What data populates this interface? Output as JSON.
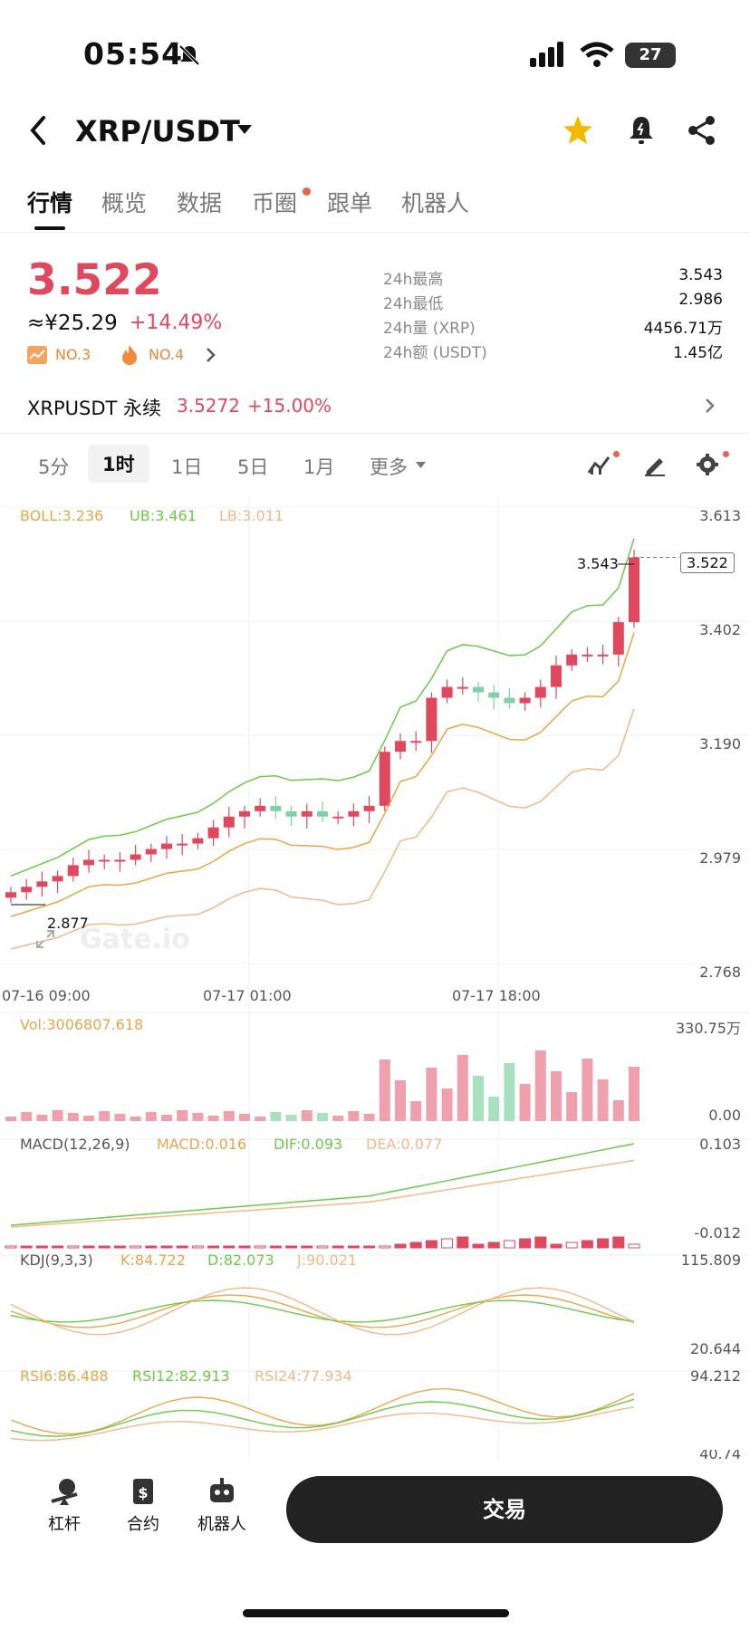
{
  "status_bar": {
    "time": "05:54",
    "battery": "27"
  },
  "header": {
    "pair": "XRP/USDT",
    "icons": [
      "back-icon",
      "dropdown-icon",
      "star-icon",
      "bell-icon",
      "share-icon"
    ]
  },
  "tabs": [
    {
      "label": "行情",
      "active": true
    },
    {
      "label": "概览"
    },
    {
      "label": "数据"
    },
    {
      "label": "币圈",
      "dot": true
    },
    {
      "label": "跟单"
    },
    {
      "label": "机器人"
    }
  ],
  "ticker": {
    "price": "3.522",
    "cny": "≈¥25.29",
    "change": "+14.49%",
    "rank1": "NO.3",
    "rank2": "NO.4",
    "stats": [
      {
        "label": "24h最高",
        "value": "3.543"
      },
      {
        "label": "24h最低",
        "value": "2.986"
      },
      {
        "label": "24h量 (XRP)",
        "value": "4456.71万"
      },
      {
        "label": "24h额 (USDT)",
        "value": "1.45亿"
      }
    ]
  },
  "perpetual": {
    "name": "XRPUSDT 永续",
    "price": "3.5272",
    "change": "+15.00%"
  },
  "periods": [
    {
      "label": "5分"
    },
    {
      "label": "1时",
      "active": true
    },
    {
      "label": "1日"
    },
    {
      "label": "5日"
    },
    {
      "label": "1月"
    },
    {
      "label": "更多"
    }
  ],
  "indicators": {
    "boll": "BOLL:3.236",
    "ub": "UB:3.461",
    "lb": "LB:3.011",
    "vol": "Vol:3006807.618",
    "vol_max": "330.75万",
    "vol_min": "0.00",
    "macd_title": "MACD(12,26,9)",
    "macd": "MACD:0.016",
    "dif": "DIF:0.093",
    "dea": "DEA:0.077",
    "macd_max": "0.103",
    "macd_min": "-0.012",
    "kdj_title": "KDJ(9,3,3)",
    "k": "K:84.722",
    "d": "D:82.073",
    "j": "J:90.021",
    "kdj_max": "115.809",
    "kdj_min": "20.644",
    "rsi6": "RSI6:86.488",
    "rsi12": "RSI12:82.913",
    "rsi24": "RSI24:77.934",
    "rsi_max": "94.212",
    "rsi_min": "40.74"
  },
  "price_axis": [
    "3.613",
    "3.402",
    "3.190",
    "2.979",
    "2.768"
  ],
  "time_axis": [
    "07-16 09:00",
    "07-17 01:00",
    "07-17 18:00"
  ],
  "chart_markers": {
    "high": "3.543",
    "low": "2.877",
    "last": "3.522"
  },
  "watermark": "Gate.io",
  "colors": {
    "up": "#e0485e",
    "down": "#7fd1a3",
    "boll_ub": "#6cc94a",
    "boll_mid": "#e7a64b",
    "boll_lb": "#f0b98a"
  },
  "bottom_bar": {
    "items": [
      "杠杆",
      "合约",
      "机器人"
    ],
    "trade": "交易"
  },
  "chart_data": {
    "type": "candlestick",
    "interval": "1h",
    "candles_close": [
      2.9,
      2.91,
      2.92,
      2.93,
      2.95,
      2.96,
      2.96,
      2.96,
      2.97,
      2.98,
      2.99,
      2.99,
      3.0,
      3.02,
      3.04,
      3.05,
      3.06,
      3.05,
      3.04,
      3.05,
      3.04,
      3.04,
      3.05,
      3.06,
      3.16,
      3.18,
      3.18,
      3.26,
      3.28,
      3.28,
      3.27,
      3.26,
      3.25,
      3.26,
      3.28,
      3.32,
      3.34,
      3.34,
      3.34,
      3.4,
      3.52
    ]
  }
}
